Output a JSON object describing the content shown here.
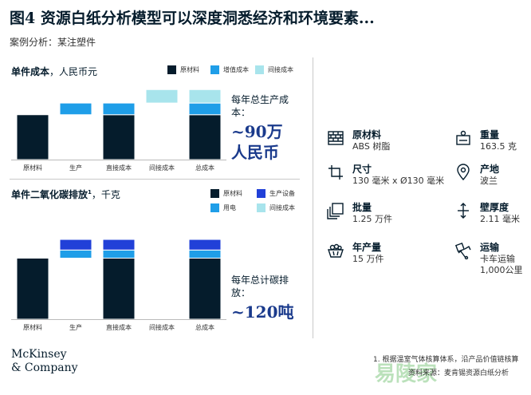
{
  "header": {
    "title": "图4 资源白纸分析模型可以深度洞悉经济和环境要素...",
    "subtitle": "案例分析：某注塑件"
  },
  "colors": {
    "navy": "#051c2c",
    "mid_blue": "#1f9ee8",
    "light_cyan": "#a8e4ec",
    "royal_blue": "#2140d8",
    "total_text": "#1a3a8c"
  },
  "chart_data": [
    {
      "type": "bar",
      "subtype": "waterfall",
      "title": "单件成本",
      "unit": "，人民币元",
      "categories": [
        "原材料",
        "生产",
        "直接成本",
        "间接成本",
        "总成本"
      ],
      "legend": [
        {
          "name": "原材料",
          "color": "#051c2c"
        },
        {
          "name": "增值成本",
          "color": "#1f9ee8"
        },
        {
          "name": "间接成本",
          "color": "#a8e4ec"
        }
      ],
      "bars": [
        {
          "category": "原材料",
          "segments": [
            {
              "series": "原材料",
              "from": 0,
              "to": 50
            }
          ]
        },
        {
          "category": "生产",
          "segments": [
            {
              "series": "增值成本",
              "from": 50,
              "to": 63
            }
          ]
        },
        {
          "category": "直接成本",
          "segments": [
            {
              "series": "原材料",
              "from": 0,
              "to": 50
            },
            {
              "series": "增值成本",
              "from": 50,
              "to": 63
            }
          ]
        },
        {
          "category": "间接成本",
          "segments": [
            {
              "series": "间接成本",
              "from": 63,
              "to": 78
            }
          ]
        },
        {
          "category": "总成本",
          "segments": [
            {
              "series": "原材料",
              "from": 0,
              "to": 50
            },
            {
              "series": "增值成本",
              "from": 50,
              "to": 63
            },
            {
              "series": "间接成本",
              "from": 63,
              "to": 78
            }
          ]
        }
      ],
      "ylim": [
        0,
        80
      ],
      "total_label": "每年总生产成本：",
      "total_value": "~90万人民币",
      "total_value_line1": "~90万",
      "total_value_line2": "人民币"
    },
    {
      "type": "bar",
      "subtype": "waterfall",
      "title": "单件二氧化碳排放",
      "title_sup": "1",
      "unit": "，千克",
      "categories": [
        "原材料",
        "生产",
        "直接成本",
        "间接成本",
        "总成本"
      ],
      "legend": [
        {
          "name": "原材料",
          "color": "#051c2c"
        },
        {
          "name": "生产设备",
          "color": "#2140d8"
        },
        {
          "name": "用电",
          "color": "#1f9ee8"
        },
        {
          "name": "间接成本",
          "color": "#a8e4ec"
        }
      ],
      "bars": [
        {
          "category": "原材料",
          "segments": [
            {
              "series": "原材料",
              "from": 0,
              "to": 75
            }
          ]
        },
        {
          "category": "生产",
          "segments": [
            {
              "series": "用电",
              "from": 75,
              "to": 85
            },
            {
              "series": "生产设备",
              "from": 85,
              "to": 98
            }
          ]
        },
        {
          "category": "直接成本",
          "segments": [
            {
              "series": "原材料",
              "from": 0,
              "to": 75
            },
            {
              "series": "用电",
              "from": 75,
              "to": 85
            },
            {
              "series": "生产设备",
              "from": 85,
              "to": 98
            }
          ]
        },
        {
          "category": "间接成本",
          "segments": []
        },
        {
          "category": "总成本",
          "segments": [
            {
              "series": "原材料",
              "from": 0,
              "to": 75
            },
            {
              "series": "用电",
              "from": 75,
              "to": 85
            },
            {
              "series": "生产设备",
              "from": 85,
              "to": 98
            }
          ]
        }
      ],
      "ylim": [
        0,
        100
      ],
      "total_label": "每年总计碳排放：",
      "total_value": "~120吨"
    }
  ],
  "attributes": [
    {
      "icon": "brick-wall-icon",
      "label": "原材料",
      "value": "ABS 树脂"
    },
    {
      "icon": "scale-icon",
      "label": "重量",
      "value": "163.5 克"
    },
    {
      "icon": "crop-icon",
      "label": "尺寸",
      "value": "130 毫米 x Ø130 毫米"
    },
    {
      "icon": "location-pin-icon",
      "label": "产地",
      "value": "波兰"
    },
    {
      "icon": "stack-icon",
      "label": "批量",
      "value": "1.25 万件"
    },
    {
      "icon": "thickness-icon",
      "label": "壁厚度",
      "value": "2.11 毫米"
    },
    {
      "icon": "basket-icon",
      "label": "年产量",
      "value": "15 万件"
    },
    {
      "icon": "transport-icon",
      "label": "运输",
      "value": "卡车运输",
      "value2": "1,000公里"
    }
  ],
  "footer": {
    "logo_line1": "McKinsey",
    "logo_line2": "& Company",
    "footnote": "1. 根据温室气体核算体系，沿产品价值链核算",
    "source": "资料来源：麦肯锡资源白纸分析",
    "watermark": "易陵家"
  }
}
